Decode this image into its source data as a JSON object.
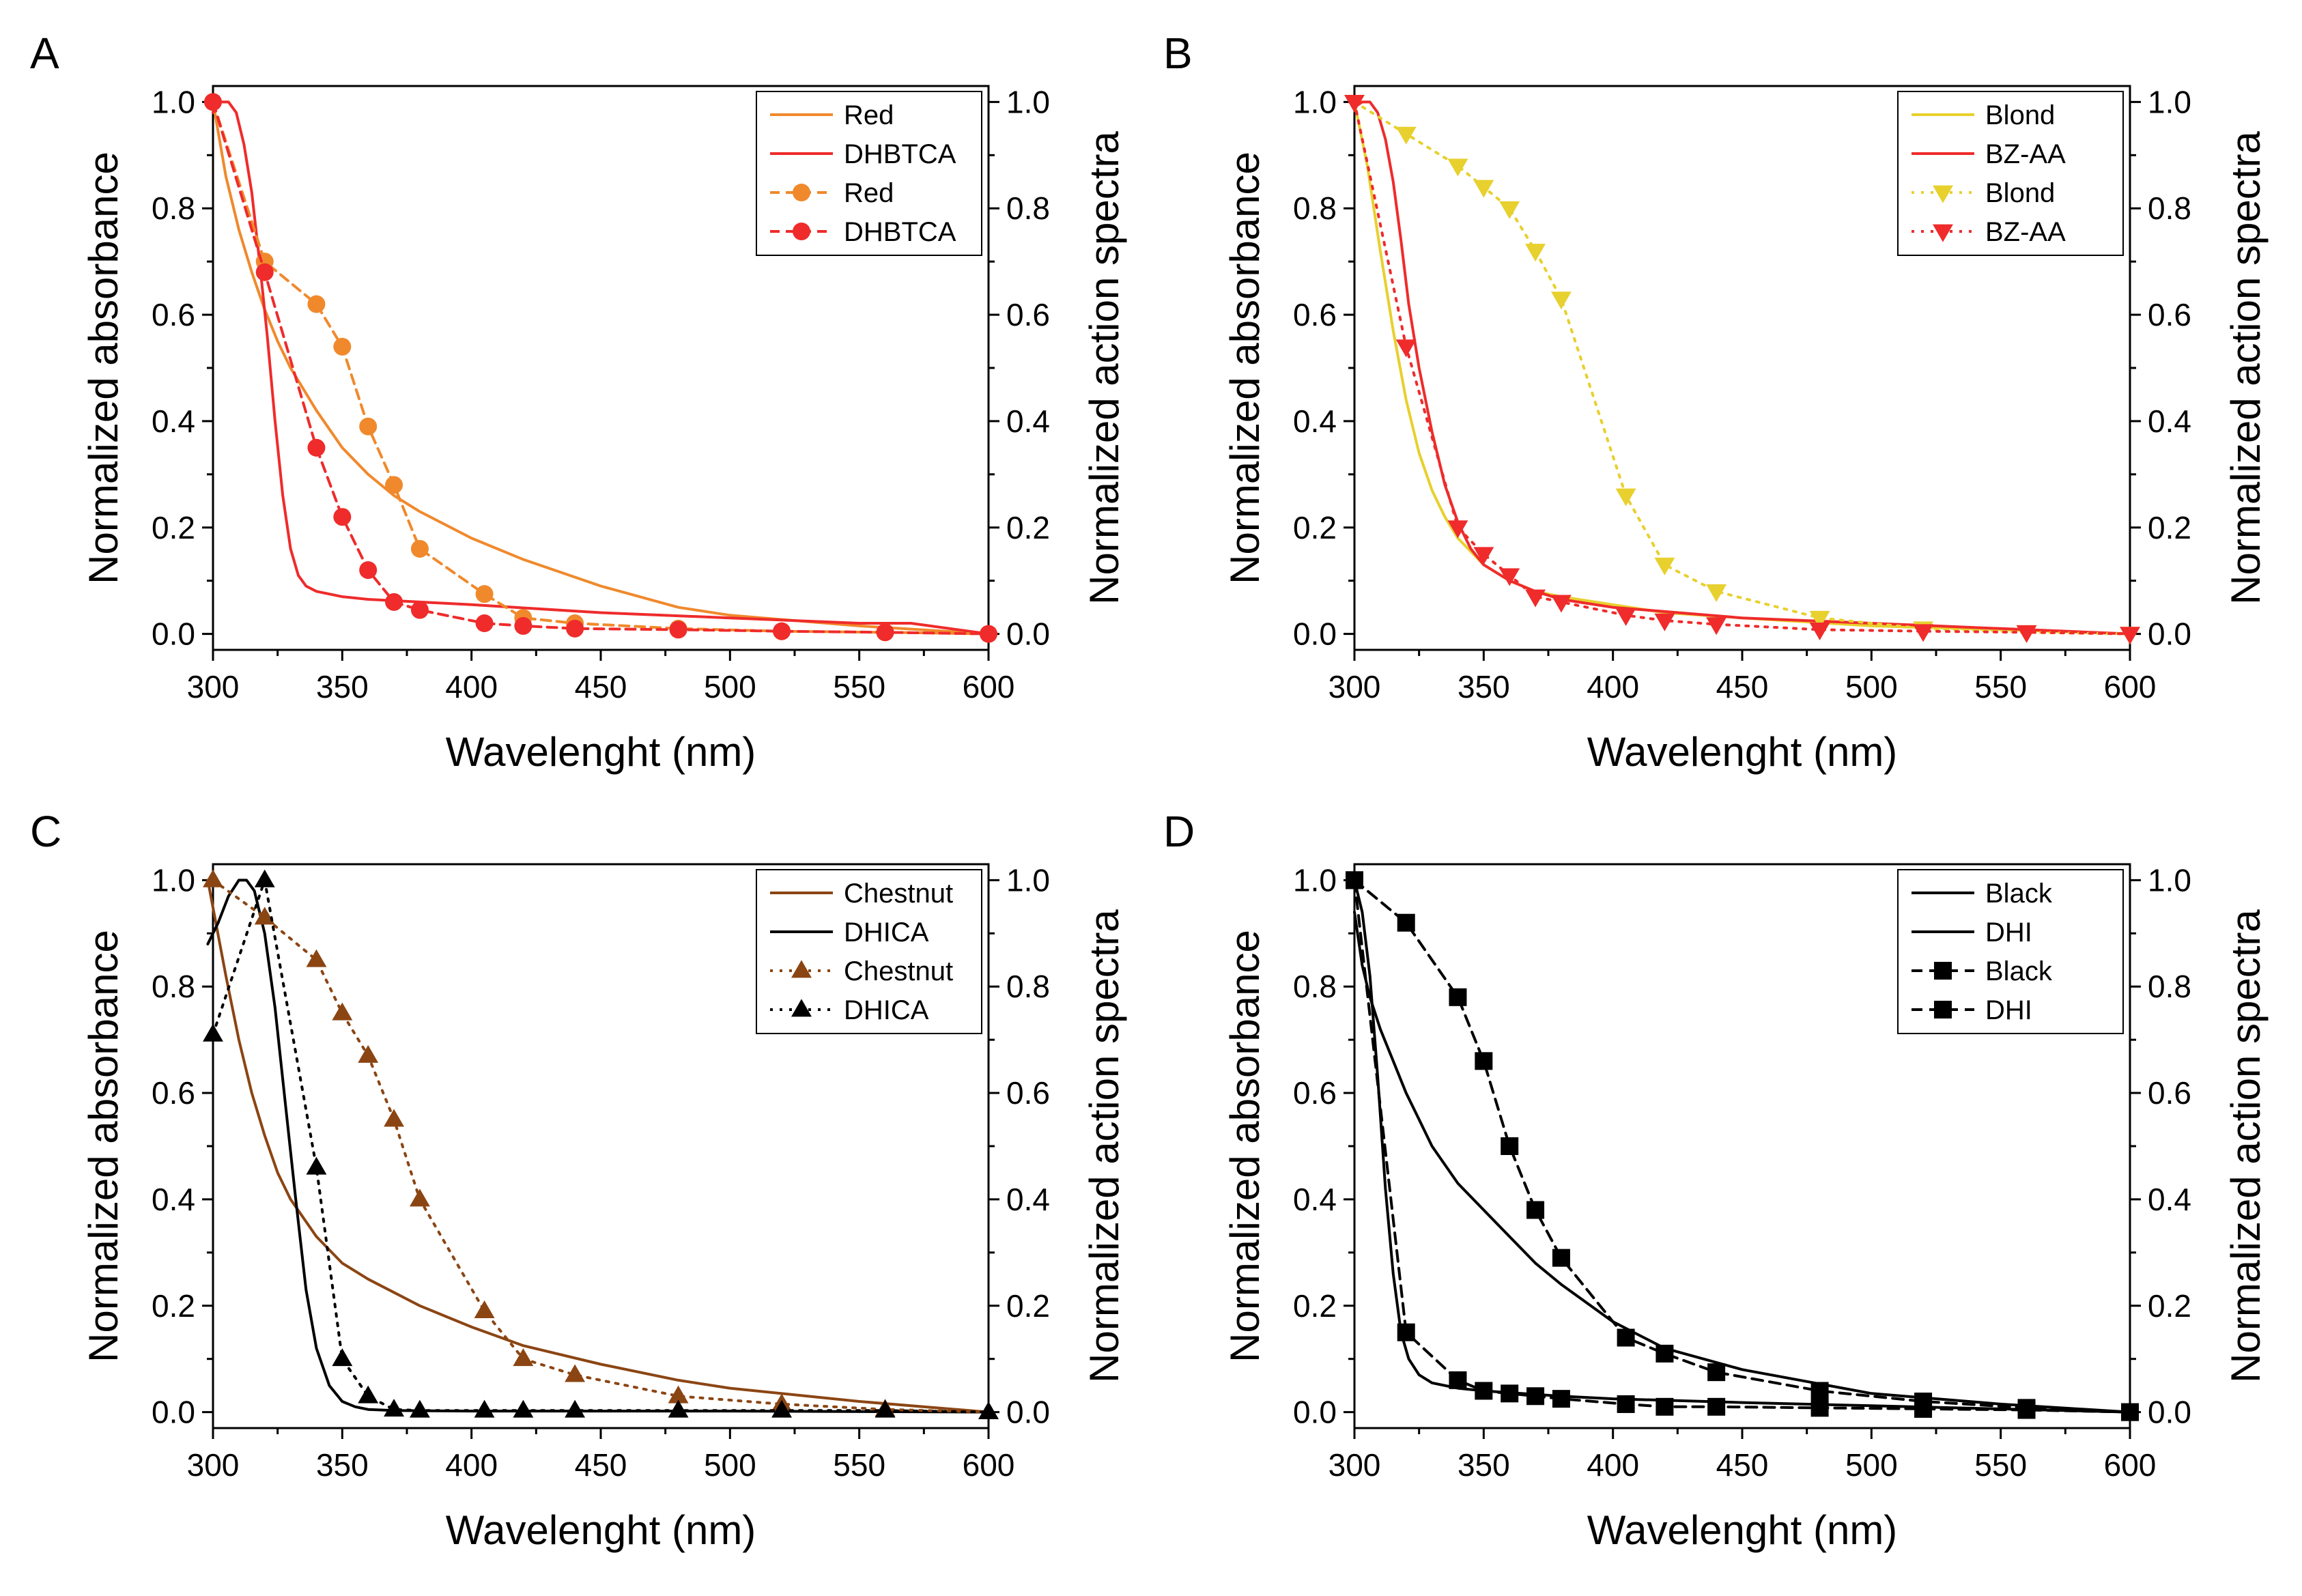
{
  "chart_data": [
    {
      "type": "line",
      "panel": "A",
      "xlabel": "Wavelenght (nm)",
      "ylabel": "Normalized absorbance",
      "y2label": "Normalized action spectra",
      "xlim": [
        300,
        600
      ],
      "ylim": [
        0,
        1
      ],
      "xticks": [
        300,
        350,
        400,
        450,
        500,
        550,
        600
      ],
      "yticks": [
        0.0,
        0.2,
        0.4,
        0.6,
        0.8,
        1.0
      ],
      "series": [
        {
          "name": "Red",
          "kind": "absorbance",
          "color": "#f0892c",
          "dash": "none",
          "marker": "none",
          "x": [
            300,
            305,
            310,
            315,
            320,
            325,
            330,
            340,
            350,
            360,
            370,
            380,
            400,
            420,
            450,
            480,
            500,
            550,
            600
          ],
          "y": [
            1.0,
            0.86,
            0.76,
            0.68,
            0.61,
            0.55,
            0.5,
            0.42,
            0.35,
            0.3,
            0.26,
            0.23,
            0.18,
            0.14,
            0.09,
            0.05,
            0.035,
            0.015,
            0.0
          ]
        },
        {
          "name": "DHBTCA",
          "kind": "absorbance",
          "color": "#ef2b2b",
          "dash": "none",
          "marker": "none",
          "x": [
            300,
            303,
            306,
            309,
            312,
            315,
            318,
            321,
            324,
            327,
            330,
            333,
            336,
            340,
            345,
            350,
            360,
            380,
            400,
            450,
            500,
            550,
            570,
            600
          ],
          "y": [
            0.98,
            1.0,
            1.0,
            0.98,
            0.92,
            0.83,
            0.7,
            0.56,
            0.4,
            0.26,
            0.16,
            0.11,
            0.09,
            0.08,
            0.075,
            0.07,
            0.065,
            0.06,
            0.055,
            0.04,
            0.03,
            0.02,
            0.02,
            0.0
          ]
        },
        {
          "name": "Red",
          "kind": "action",
          "color": "#f0892c",
          "dash": "14,9",
          "marker": "circle",
          "x": [
            300,
            320,
            340,
            350,
            360,
            370,
            380,
            405,
            420,
            440,
            480,
            520,
            560,
            600
          ],
          "y": [
            1.0,
            0.7,
            0.62,
            0.54,
            0.39,
            0.28,
            0.16,
            0.075,
            0.03,
            0.02,
            0.01,
            0.005,
            0.003,
            0.0
          ]
        },
        {
          "name": "DHBTCA",
          "kind": "action",
          "color": "#ef2b2b",
          "dash": "14,9",
          "marker": "circle",
          "x": [
            300,
            320,
            340,
            350,
            360,
            370,
            380,
            405,
            420,
            440,
            480,
            520,
            560,
            600
          ],
          "y": [
            1.0,
            0.68,
            0.35,
            0.22,
            0.12,
            0.06,
            0.045,
            0.02,
            0.015,
            0.01,
            0.008,
            0.005,
            0.003,
            0.0
          ]
        }
      ]
    },
    {
      "type": "line",
      "panel": "B",
      "xlabel": "Wavelenght (nm)",
      "ylabel": "Normalized absorbance",
      "y2label": "Normalized action spectra",
      "xlim": [
        300,
        600
      ],
      "ylim": [
        0,
        1
      ],
      "xticks": [
        300,
        350,
        400,
        450,
        500,
        550,
        600
      ],
      "yticks": [
        0.0,
        0.2,
        0.4,
        0.6,
        0.8,
        1.0
      ],
      "series": [
        {
          "name": "Blond",
          "kind": "absorbance",
          "color": "#e8d02e",
          "dash": "none",
          "marker": "none",
          "x": [
            300,
            305,
            310,
            315,
            320,
            325,
            330,
            335,
            340,
            350,
            360,
            370,
            380,
            400,
            420,
            450,
            500,
            550,
            600
          ],
          "y": [
            1.0,
            0.88,
            0.72,
            0.57,
            0.44,
            0.34,
            0.27,
            0.22,
            0.18,
            0.13,
            0.1,
            0.08,
            0.07,
            0.055,
            0.04,
            0.03,
            0.015,
            0.008,
            0.0
          ]
        },
        {
          "name": "BZ-AA",
          "kind": "absorbance",
          "color": "#ef2b2b",
          "dash": "none",
          "marker": "none",
          "x": [
            300,
            303,
            306,
            309,
            312,
            315,
            318,
            321,
            325,
            330,
            335,
            340,
            345,
            350,
            360,
            370,
            380,
            400,
            450,
            500,
            550,
            600
          ],
          "y": [
            0.99,
            1.0,
            1.0,
            0.98,
            0.93,
            0.85,
            0.74,
            0.62,
            0.5,
            0.38,
            0.28,
            0.21,
            0.16,
            0.13,
            0.1,
            0.08,
            0.065,
            0.05,
            0.03,
            0.02,
            0.01,
            0.0
          ]
        },
        {
          "name": "Blond",
          "kind": "action",
          "color": "#e8d02e",
          "dash": "4,10",
          "marker": "triangle-down",
          "x": [
            300,
            320,
            340,
            350,
            360,
            370,
            380,
            405,
            420,
            440,
            480,
            520,
            560,
            600
          ],
          "y": [
            1.0,
            0.94,
            0.88,
            0.84,
            0.8,
            0.72,
            0.63,
            0.26,
            0.13,
            0.08,
            0.03,
            0.01,
            0.003,
            0.0
          ]
        },
        {
          "name": "BZ-AA",
          "kind": "action",
          "color": "#ef2b2b",
          "dash": "4,10",
          "marker": "triangle-down",
          "x": [
            300,
            320,
            340,
            350,
            360,
            370,
            380,
            405,
            420,
            440,
            480,
            520,
            560,
            600
          ],
          "y": [
            1.0,
            0.54,
            0.2,
            0.15,
            0.11,
            0.07,
            0.06,
            0.035,
            0.025,
            0.018,
            0.008,
            0.005,
            0.003,
            0.0
          ]
        }
      ]
    },
    {
      "type": "line",
      "panel": "C",
      "xlabel": "Wavelenght (nm)",
      "ylabel": "Normalized absorbance",
      "y2label": "Normalized action spectra",
      "xlim": [
        300,
        600
      ],
      "ylim": [
        0,
        1
      ],
      "xticks": [
        300,
        350,
        400,
        450,
        500,
        550,
        600
      ],
      "yticks": [
        0.0,
        0.2,
        0.4,
        0.6,
        0.8,
        1.0
      ],
      "series": [
        {
          "name": "Chestnut",
          "kind": "absorbance",
          "color": "#8b4513",
          "dash": "none",
          "marker": "none",
          "x": [
            298,
            305,
            310,
            315,
            320,
            325,
            330,
            340,
            350,
            360,
            380,
            400,
            420,
            450,
            480,
            500,
            550,
            600
          ],
          "y": [
            1.0,
            0.82,
            0.7,
            0.6,
            0.52,
            0.45,
            0.4,
            0.33,
            0.28,
            0.25,
            0.2,
            0.16,
            0.125,
            0.09,
            0.06,
            0.045,
            0.02,
            0.0
          ]
        },
        {
          "name": "DHICA",
          "kind": "absorbance",
          "color": "#000000",
          "dash": "none",
          "marker": "none",
          "x": [
            298,
            302,
            306,
            310,
            313,
            316,
            320,
            324,
            328,
            332,
            336,
            340,
            345,
            350,
            355,
            360,
            370,
            400,
            500,
            600
          ],
          "y": [
            0.88,
            0.92,
            0.97,
            1.0,
            1.0,
            0.98,
            0.9,
            0.76,
            0.58,
            0.4,
            0.23,
            0.12,
            0.05,
            0.02,
            0.01,
            0.005,
            0.003,
            0.002,
            0.002,
            0.0
          ]
        },
        {
          "name": "Chestnut",
          "kind": "action",
          "color": "#8b4513",
          "dash": "4,10",
          "marker": "triangle-up",
          "x": [
            300,
            320,
            340,
            350,
            360,
            370,
            380,
            405,
            420,
            440,
            480,
            520,
            560,
            600
          ],
          "y": [
            1.0,
            0.93,
            0.85,
            0.75,
            0.67,
            0.55,
            0.4,
            0.19,
            0.1,
            0.07,
            0.03,
            0.015,
            0.005,
            0.0
          ]
        },
        {
          "name": "DHICA",
          "kind": "action",
          "color": "#000000",
          "dash": "4,10",
          "marker": "triangle-up",
          "x": [
            300,
            320,
            340,
            350,
            360,
            370,
            380,
            405,
            420,
            440,
            480,
            520,
            560,
            600
          ],
          "y": [
            0.71,
            1.0,
            0.46,
            0.1,
            0.03,
            0.005,
            0.003,
            0.003,
            0.003,
            0.003,
            0.003,
            0.003,
            0.003,
            0.0
          ]
        }
      ]
    },
    {
      "type": "line",
      "panel": "D",
      "xlabel": "Wavelenght (nm)",
      "ylabel": "Normalized absorbance",
      "y2label": "Normalized action spectra",
      "xlim": [
        300,
        600
      ],
      "ylim": [
        0,
        1
      ],
      "xticks": [
        300,
        350,
        400,
        450,
        500,
        550,
        600
      ],
      "yticks": [
        0.0,
        0.2,
        0.4,
        0.6,
        0.8,
        1.0
      ],
      "series": [
        {
          "name": "Black",
          "kind": "absorbance",
          "color": "#000000",
          "dash": "none",
          "marker": "none",
          "x": [
            300,
            303,
            306,
            310,
            315,
            320,
            325,
            330,
            340,
            350,
            360,
            370,
            380,
            400,
            420,
            450,
            500,
            550,
            600
          ],
          "y": [
            0.94,
            0.84,
            0.78,
            0.72,
            0.66,
            0.6,
            0.55,
            0.5,
            0.43,
            0.38,
            0.33,
            0.28,
            0.24,
            0.17,
            0.12,
            0.08,
            0.035,
            0.015,
            0.0
          ]
        },
        {
          "name": "DHI",
          "kind": "absorbance",
          "color": "#000000",
          "dash": "none",
          "marker": "none",
          "x": [
            300,
            303,
            306,
            309,
            312,
            315,
            318,
            321,
            325,
            330,
            340,
            350,
            380,
            400,
            450,
            500,
            550,
            600
          ],
          "y": [
            1.0,
            0.94,
            0.82,
            0.63,
            0.42,
            0.26,
            0.15,
            0.1,
            0.07,
            0.055,
            0.045,
            0.04,
            0.03,
            0.025,
            0.018,
            0.012,
            0.006,
            0.0
          ]
        },
        {
          "name": "Black",
          "kind": "action",
          "color": "#000000",
          "dash": "16,10",
          "marker": "square",
          "x": [
            300,
            320,
            340,
            350,
            360,
            370,
            380,
            405,
            420,
            440,
            480,
            520,
            560,
            600
          ],
          "y": [
            1.0,
            0.92,
            0.78,
            0.66,
            0.5,
            0.38,
            0.29,
            0.14,
            0.11,
            0.075,
            0.04,
            0.02,
            0.008,
            0.0
          ]
        },
        {
          "name": "DHI",
          "kind": "action",
          "color": "#000000",
          "dash": "16,10",
          "marker": "square",
          "x": [
            300,
            320,
            340,
            350,
            360,
            370,
            380,
            405,
            420,
            440,
            480,
            520,
            560,
            600
          ],
          "y": [
            1.0,
            0.15,
            0.06,
            0.04,
            0.035,
            0.03,
            0.025,
            0.015,
            0.01,
            0.01,
            0.008,
            0.006,
            0.004,
            0.0
          ]
        }
      ]
    }
  ]
}
